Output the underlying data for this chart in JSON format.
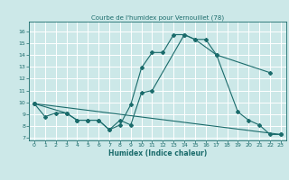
{
  "title": "Courbe de l'humidex pour Vernouillet (78)",
  "xlabel": "Humidex (Indice chaleur)",
  "bg_color": "#cce8e8",
  "grid_color": "#ffffff",
  "line_color": "#1a6b6b",
  "xlim": [
    -0.5,
    23.5
  ],
  "ylim": [
    6.8,
    16.8
  ],
  "xticks": [
    0,
    1,
    2,
    3,
    4,
    5,
    6,
    7,
    8,
    9,
    10,
    11,
    12,
    13,
    14,
    15,
    16,
    17,
    18,
    19,
    20,
    21,
    22,
    23
  ],
  "yticks": [
    7,
    8,
    9,
    10,
    11,
    12,
    13,
    14,
    15,
    16
  ],
  "line1_x": [
    0,
    1,
    2,
    3,
    4,
    5,
    6,
    7,
    8,
    9,
    10,
    11,
    12,
    13,
    14,
    15,
    16,
    17,
    22
  ],
  "line1_y": [
    9.9,
    8.8,
    9.1,
    9.1,
    8.5,
    8.5,
    8.5,
    7.7,
    8.1,
    9.8,
    12.9,
    14.2,
    14.2,
    15.7,
    15.7,
    15.3,
    15.3,
    14.0,
    12.5
  ],
  "line2_x": [
    0,
    3,
    4,
    5,
    6,
    7,
    8,
    9,
    10,
    11,
    14,
    15,
    17,
    19,
    20,
    21,
    22,
    23
  ],
  "line2_y": [
    9.9,
    9.1,
    8.5,
    8.5,
    8.5,
    7.7,
    8.5,
    8.1,
    10.8,
    11.0,
    15.7,
    15.3,
    14.0,
    9.2,
    8.5,
    8.1,
    7.3,
    7.3
  ],
  "line3_x": [
    0,
    23
  ],
  "line3_y": [
    9.9,
    7.3
  ]
}
